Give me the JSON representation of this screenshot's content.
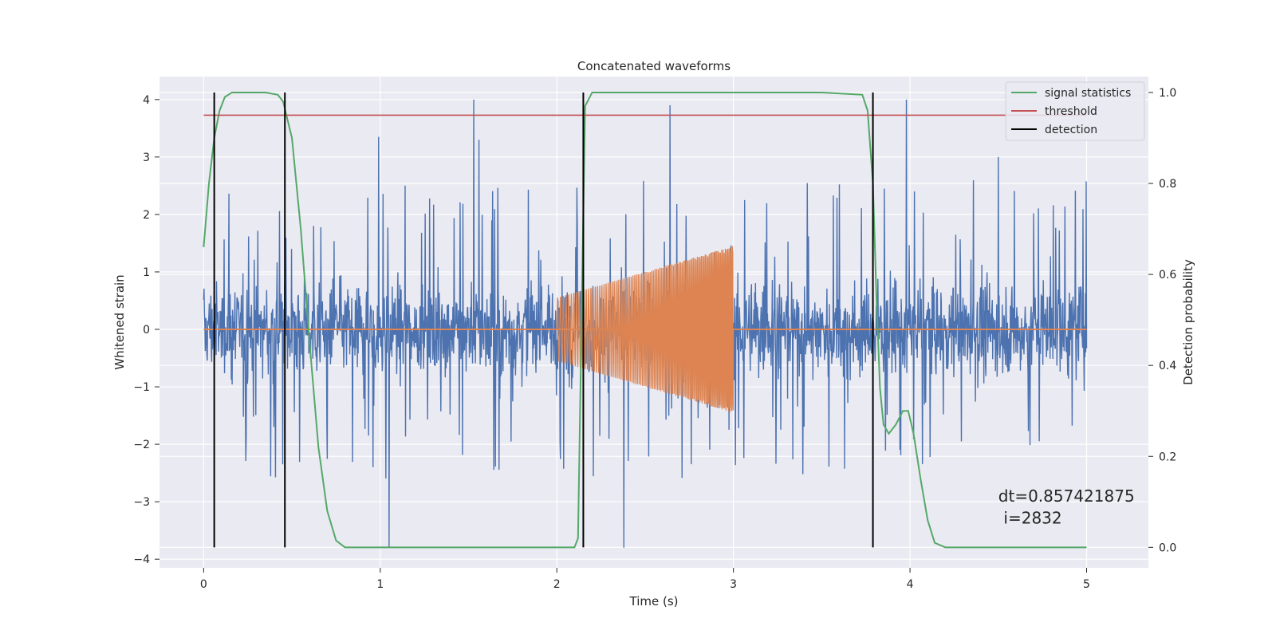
{
  "chart_data": {
    "type": "line",
    "title": "Concatenated waveforms",
    "xlabel": "Time (s)",
    "ylabel": "Whitened strain",
    "y2label": "Detection probability",
    "xlim": [
      -0.25,
      5.35
    ],
    "ylim": [
      -4.15,
      4.4
    ],
    "y2lim": [
      -0.045,
      1.035
    ],
    "xticks": [
      0,
      1,
      2,
      3,
      4,
      5
    ],
    "yticks": [
      -4,
      -3,
      -2,
      -1,
      0,
      1,
      2,
      3,
      4
    ],
    "y2ticks": [
      0.0,
      0.2,
      0.4,
      0.6,
      0.8,
      1.0
    ],
    "xtick_labels": [
      "0",
      "1",
      "2",
      "3",
      "4",
      "5"
    ],
    "ytick_labels": [
      "−4",
      "−3",
      "−2",
      "−1",
      "0",
      "1",
      "2",
      "3",
      "4"
    ],
    "y2tick_labels": [
      "0.0",
      "0.2",
      "0.4",
      "0.6",
      "0.8",
      "1.0"
    ],
    "grid": true,
    "legend_placement": "top-right",
    "legend": [
      {
        "label": "signal statistics",
        "color": "#55a868"
      },
      {
        "label": "threshold",
        "color": "#c44e52"
      },
      {
        "label": "detection",
        "color": "#000000"
      }
    ],
    "colors": {
      "noise": "#4c72b0",
      "waveform": "#dd8452",
      "signal_statistics": "#55a868",
      "threshold": "#c44e52",
      "detection": "#000000",
      "axes_bg": "#eaeaf2",
      "grid": "#ffffff"
    },
    "series": [
      {
        "name": "strain",
        "axis": "left",
        "x_range": [
          0,
          5
        ],
        "envelope": {
          "core": 1.0,
          "peak": 4.0,
          "trough": -3.8
        },
        "notable_peaks": [
          [
            1.05,
            -3.8
          ],
          [
            1.53,
            4.0
          ],
          [
            1.56,
            3.3
          ],
          [
            2.38,
            -3.8
          ],
          [
            2.64,
            3.9
          ],
          [
            3.98,
            4.0
          ],
          [
            0.99,
            3.35
          ],
          [
            4.5,
            3.0
          ]
        ]
      },
      {
        "name": "waveform",
        "axis": "left",
        "x_range": [
          2.0,
          3.0
        ],
        "amplitude_start": 0.55,
        "amplitude_end": 1.45
      },
      {
        "name": "signal statistics",
        "axis": "right",
        "x": [
          0.0,
          0.03,
          0.06,
          0.09,
          0.12,
          0.16,
          0.25,
          0.35,
          0.42,
          0.45,
          0.5,
          0.55,
          0.6,
          0.65,
          0.7,
          0.75,
          0.8,
          1.0,
          1.5,
          2.0,
          2.1,
          2.12,
          2.14,
          2.16,
          2.2,
          2.3,
          3.0,
          3.5,
          3.73,
          3.76,
          3.79,
          3.81,
          3.83,
          3.85,
          3.88,
          3.92,
          3.96,
          3.99,
          4.02,
          4.06,
          4.1,
          4.14,
          4.2,
          5.0
        ],
        "y": [
          0.66,
          0.8,
          0.9,
          0.96,
          0.99,
          1.0,
          1.0,
          1.0,
          0.995,
          0.98,
          0.9,
          0.7,
          0.45,
          0.22,
          0.08,
          0.015,
          0.0,
          0.0,
          0.0,
          0.0,
          0.0,
          0.02,
          0.5,
          0.97,
          1.0,
          1.0,
          1.0,
          1.0,
          0.995,
          0.96,
          0.8,
          0.55,
          0.35,
          0.27,
          0.25,
          0.27,
          0.3,
          0.3,
          0.25,
          0.15,
          0.06,
          0.01,
          0.0,
          0.0
        ]
      },
      {
        "name": "threshold",
        "axis": "right",
        "x": [
          0,
          5
        ],
        "y": [
          0.95,
          0.95
        ]
      },
      {
        "name": "detection",
        "axis": "right",
        "type": "vlines",
        "x": [
          0.06,
          0.46,
          2.15,
          3.79
        ],
        "ymin": 0.0,
        "ymax": 1.0
      }
    ],
    "annotations": [
      {
        "text": "dt=0.857421875",
        "x": 4.5,
        "y": -3.0
      },
      {
        "text": "i=2832",
        "x": 4.53,
        "y": -3.38
      }
    ]
  }
}
